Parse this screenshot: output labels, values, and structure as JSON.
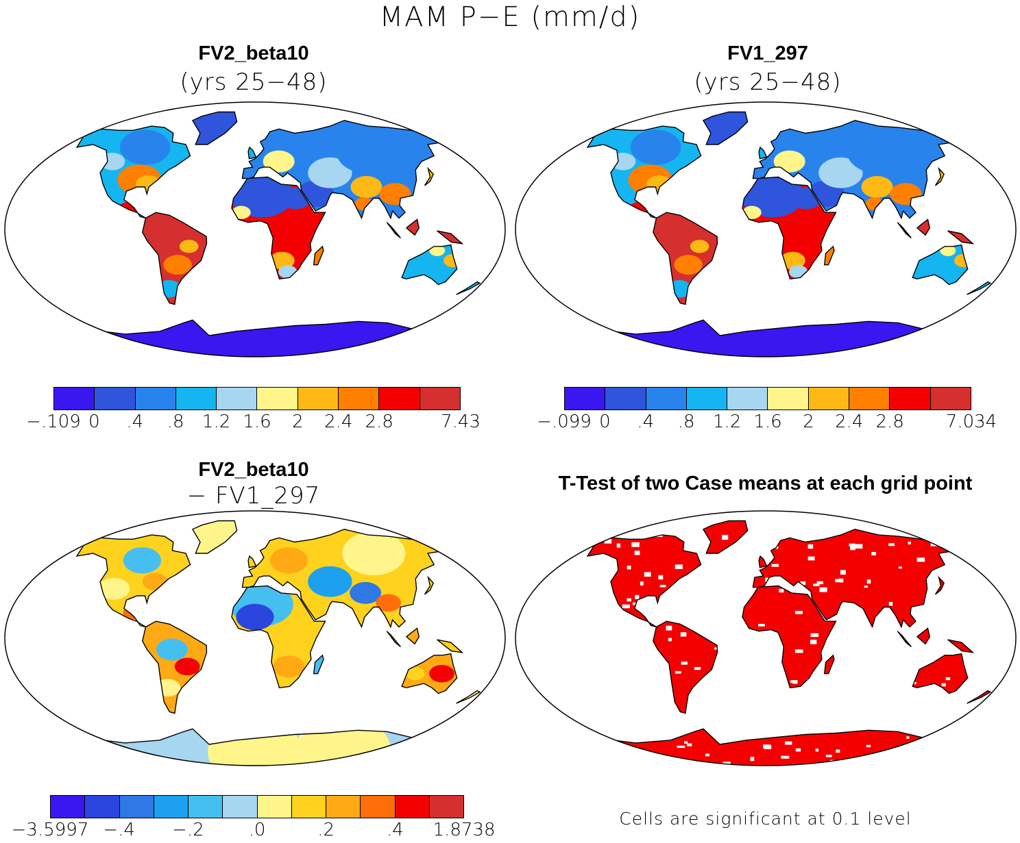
{
  "title": "MAM P−E (mm/d)",
  "panels": [
    {
      "id": "fv2",
      "title": "FV2_beta10",
      "subtitle": "(yrs 25−48)",
      "palette": "pe",
      "colorbar": {
        "colors": [
          "#3a17f0",
          "#2e55dc",
          "#2883ec",
          "#14b5f0",
          "#a6d6f0",
          "#fff58a",
          "#ffb914",
          "#ff7f00",
          "#f50000",
          "#d62f2f"
        ],
        "labels": [
          "−.109",
          "0",
          ".4",
          ".8",
          "1.2",
          "1.6",
          "2",
          "2.4",
          "2.8",
          "7.43"
        ]
      }
    },
    {
      "id": "fv1",
      "title": "FV1_297",
      "subtitle": "(yrs 25−48)",
      "palette": "pe",
      "colorbar": {
        "colors": [
          "#3a17f0",
          "#2e55dc",
          "#2883ec",
          "#14b5f0",
          "#a6d6f0",
          "#fff58a",
          "#ffb914",
          "#ff7f00",
          "#f50000",
          "#d62f2f"
        ],
        "labels": [
          "−.099",
          "0",
          ".4",
          ".8",
          "1.2",
          "1.6",
          "2",
          "2.4",
          "2.8",
          "7.034"
        ]
      }
    },
    {
      "id": "diff",
      "title": "FV2_beta10",
      "subtitle": "− FV1_297",
      "palette": "diff",
      "colorbar": {
        "colors": [
          "#3a17f0",
          "#2a46de",
          "#2f78e6",
          "#1ea0f0",
          "#45bff0",
          "#a6d6f0",
          "#fff58a",
          "#ffd21e",
          "#ffaa14",
          "#ff6e0a",
          "#f50000",
          "#d62f2f"
        ],
        "labels": [
          "−3.5997",
          "−.4",
          "−.2",
          ".0",
          ".2",
          ".4",
          "1.8738"
        ]
      }
    },
    {
      "id": "ttest",
      "title": "T-Test of two Case means at each grid point",
      "palette": "sig",
      "note": "Cells are significant at 0.1 level"
    }
  ]
}
